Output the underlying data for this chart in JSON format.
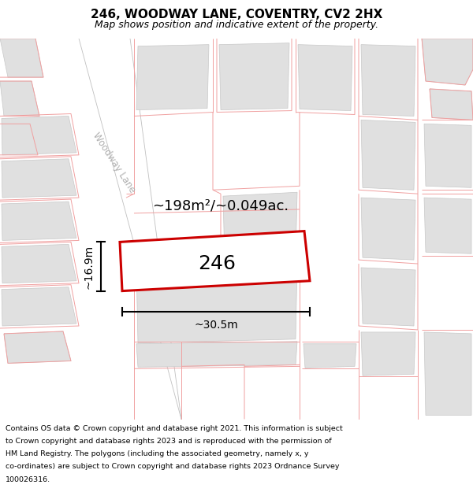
{
  "title": "246, WOODWAY LANE, COVENTRY, CV2 2HX",
  "subtitle": "Map shows position and indicative extent of the property.",
  "footer_lines": [
    "Contains OS data © Crown copyright and database right 2021. This information is subject",
    "to Crown copyright and database rights 2023 and is reproduced with the permission of",
    "HM Land Registry. The polygons (including the associated geometry, namely x, y",
    "co-ordinates) are subject to Crown copyright and database rights 2023 Ordnance Survey",
    "100026316."
  ],
  "area_label": "~198m²/~0.049ac.",
  "width_label": "~30.5m",
  "height_label": "~16.9m",
  "street_label": "Woodway Lane",
  "plot_number": "246",
  "map_bg": "#f7f7f7",
  "building_fill": "#e0e0e0",
  "building_edge": "#c8c8c8",
  "boundary_color": "#f0a0a0",
  "plot_edge": "#cc0000",
  "plot_edge_width": 2.2,
  "figsize": [
    6.0,
    6.25
  ],
  "dpi": 100,
  "title_fontsize": 11,
  "subtitle_fontsize": 9,
  "footer_fontsize": 6.8
}
